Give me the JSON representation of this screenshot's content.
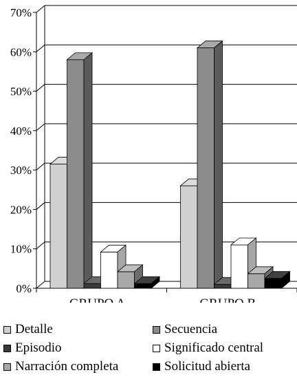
{
  "chart_data": {
    "type": "bar",
    "categories": [
      "GRUPO A",
      "GRUPO B"
    ],
    "y_ticks": [
      "0%",
      "10%",
      "20%",
      "30%",
      "40%",
      "50%",
      "60%",
      "70%"
    ],
    "ylim": [
      0,
      70
    ],
    "grid": true,
    "legend_position": "bottom",
    "series": [
      {
        "name": "Detalle",
        "color": "#d0d0d0",
        "values": [
          31.5,
          26.0
        ]
      },
      {
        "name": "Secuencia",
        "color": "#8c8c8c",
        "values": [
          58.0,
          61.0
        ]
      },
      {
        "name": "Episodio",
        "color": "#3a3a3a",
        "values": [
          1.2,
          1.0
        ]
      },
      {
        "name": "Significado central",
        "color": "#ffffff",
        "values": [
          9.2,
          11.0
        ]
      },
      {
        "name": "Narración completa",
        "color": "#a8a8a8",
        "values": [
          4.2,
          3.7
        ]
      },
      {
        "name": "Solicitud abierta",
        "color": "#000000",
        "values": [
          1.2,
          2.5
        ]
      }
    ]
  }
}
